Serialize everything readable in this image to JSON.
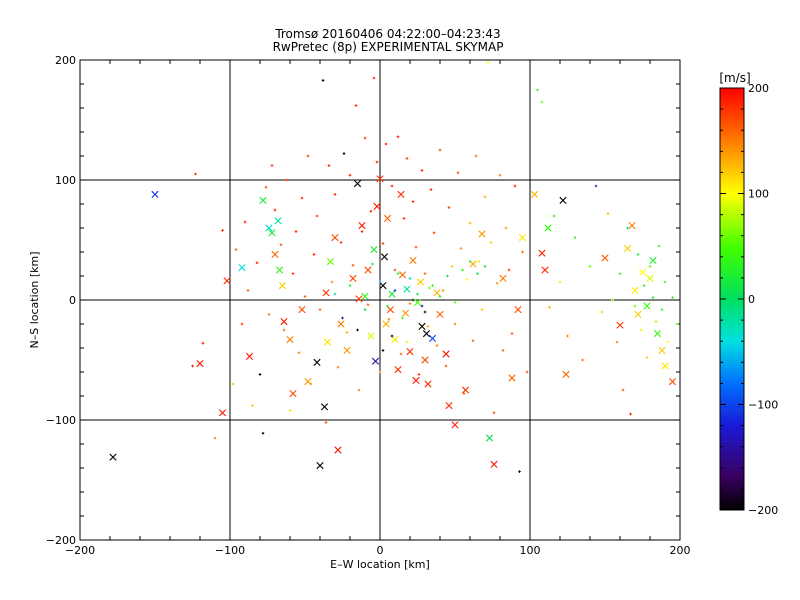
{
  "chart_data": {
    "type": "scatter",
    "title": "Tromsø 20160406 04:22:00–04:23:43",
    "subtitle": "RwPretec (8p) EXPERIMENTAL SKYMAP",
    "xlabel": "E–W location [km]",
    "ylabel": "N–S location [km]",
    "xlim": [
      -200,
      200
    ],
    "ylim": [
      -200,
      200
    ],
    "xticks": [
      -200,
      -100,
      0,
      100,
      200
    ],
    "yticks": [
      -200,
      -100,
      0,
      100,
      200
    ],
    "grid": true,
    "colorbar": {
      "label": "[m/s]",
      "range": [
        -200,
        200
      ],
      "ticks": [
        200,
        100,
        0,
        -100,
        -200
      ],
      "colormap": "rainbow (black → purple → blue → cyan → green → yellow → orange → red)"
    },
    "marker_sets": [
      {
        "marker": "x",
        "points": [
          [
            -178,
            -131,
            -200
          ],
          [
            -150,
            88,
            -110
          ],
          [
            -105,
            -94,
            190
          ],
          [
            -102,
            16,
            185
          ],
          [
            -92,
            27,
            -40
          ],
          [
            -87,
            -47,
            190
          ],
          [
            -78,
            83,
            20
          ],
          [
            -74,
            60,
            -30
          ],
          [
            -72,
            56,
            10
          ],
          [
            -70,
            38,
            160
          ],
          [
            -68,
            66,
            -20
          ],
          [
            -67,
            25,
            40
          ],
          [
            -65,
            12,
            120
          ],
          [
            -64,
            -18,
            190
          ],
          [
            -60,
            -33,
            150
          ],
          [
            -52,
            -8,
            170
          ],
          [
            -42,
            -52,
            -200
          ],
          [
            -40,
            -138,
            -200
          ],
          [
            -37,
            -89,
            -200
          ],
          [
            -36,
            6,
            180
          ],
          [
            -35,
            -35,
            110
          ],
          [
            -33,
            32,
            60
          ],
          [
            -30,
            52,
            170
          ],
          [
            -28,
            -125,
            190
          ],
          [
            -26,
            -20,
            150
          ],
          [
            -22,
            -42,
            140
          ],
          [
            -18,
            18,
            170
          ],
          [
            -15,
            97,
            -200
          ],
          [
            -14,
            1,
            180
          ],
          [
            -12,
            62,
            190
          ],
          [
            -10,
            3,
            40
          ],
          [
            -8,
            25,
            170
          ],
          [
            -6,
            -30,
            90
          ],
          [
            -4,
            42,
            20
          ],
          [
            -3,
            -51,
            -150
          ],
          [
            -2,
            78,
            190
          ],
          [
            0,
            101,
            180
          ],
          [
            2,
            12,
            -200
          ],
          [
            3,
            36,
            -200
          ],
          [
            4,
            -20,
            130
          ],
          [
            5,
            68,
            160
          ],
          [
            7,
            -8,
            170
          ],
          [
            8,
            5,
            20
          ],
          [
            10,
            -33,
            110
          ],
          [
            12,
            -58,
            180
          ],
          [
            14,
            88,
            180
          ],
          [
            15,
            21,
            160
          ],
          [
            17,
            -11,
            140
          ],
          [
            18,
            9,
            -20
          ],
          [
            20,
            -43,
            180
          ],
          [
            22,
            33,
            150
          ],
          [
            24,
            -67,
            190
          ],
          [
            25,
            -2,
            50
          ],
          [
            27,
            15,
            120
          ],
          [
            28,
            -22,
            -200
          ],
          [
            30,
            -50,
            170
          ],
          [
            31,
            -28,
            -200
          ],
          [
            32,
            -70,
            180
          ],
          [
            35,
            -32,
            -100
          ],
          [
            38,
            6,
            130
          ],
          [
            40,
            -12,
            160
          ],
          [
            44,
            -45,
            190
          ],
          [
            50,
            -104,
            190
          ],
          [
            57,
            -75,
            180
          ],
          [
            62,
            30,
            130
          ],
          [
            68,
            55,
            140
          ],
          [
            73,
            -115,
            10
          ],
          [
            76,
            -137,
            190
          ],
          [
            82,
            18,
            150
          ],
          [
            88,
            -65,
            160
          ],
          [
            95,
            52,
            110
          ],
          [
            103,
            88,
            130
          ],
          [
            108,
            39,
            190
          ],
          [
            110,
            25,
            180
          ],
          [
            112,
            60,
            40
          ],
          [
            122,
            83,
            -200
          ],
          [
            150,
            35,
            160
          ],
          [
            160,
            -21,
            180
          ],
          [
            165,
            43,
            120
          ],
          [
            168,
            62,
            150
          ],
          [
            170,
            8,
            110
          ],
          [
            172,
            -12,
            120
          ],
          [
            175,
            23,
            100
          ],
          [
            178,
            -5,
            40
          ],
          [
            180,
            18,
            90
          ],
          [
            182,
            33,
            30
          ],
          [
            185,
            -28,
            40
          ],
          [
            188,
            -42,
            120
          ],
          [
            190,
            -55,
            110
          ],
          [
            195,
            -68,
            170
          ],
          [
            -120,
            -53,
            190
          ],
          [
            -58,
            -78,
            170
          ],
          [
            -48,
            -68,
            140
          ],
          [
            46,
            -88,
            180
          ],
          [
            92,
            -8,
            170
          ],
          [
            124,
            -62,
            160
          ]
        ]
      },
      {
        "marker": "+",
        "points": [
          [
            -125,
            -55,
            190
          ],
          [
            -123,
            105,
            180
          ],
          [
            -118,
            -36,
            190
          ],
          [
            -110,
            -115,
            150
          ],
          [
            -105,
            58,
            190
          ],
          [
            -98,
            -70,
            130
          ],
          [
            -96,
            42,
            160
          ],
          [
            -92,
            -20,
            180
          ],
          [
            -90,
            65,
            190
          ],
          [
            -88,
            8,
            170
          ],
          [
            -85,
            -88,
            120
          ],
          [
            -82,
            31,
            190
          ],
          [
            -80,
            -62,
            -200
          ],
          [
            -78,
            -111,
            -200
          ],
          [
            -76,
            94,
            170
          ],
          [
            -74,
            -12,
            150
          ],
          [
            -72,
            112,
            180
          ],
          [
            -70,
            75,
            190
          ],
          [
            -66,
            46,
            170
          ],
          [
            -64,
            -25,
            160
          ],
          [
            -62,
            100,
            190
          ],
          [
            -60,
            -92,
            110
          ],
          [
            -58,
            22,
            180
          ],
          [
            -56,
            57,
            190
          ],
          [
            -54,
            -44,
            150
          ],
          [
            -52,
            85,
            190
          ],
          [
            -50,
            3,
            170
          ],
          [
            -48,
            120,
            180
          ],
          [
            -46,
            -70,
            140
          ],
          [
            -44,
            38,
            190
          ],
          [
            -42,
            70,
            180
          ],
          [
            -40,
            -8,
            160
          ],
          [
            -38,
            183,
            -200
          ],
          [
            -36,
            -102,
            170
          ],
          [
            -34,
            112,
            190
          ],
          [
            -32,
            15,
            150
          ],
          [
            -30,
            88,
            190
          ],
          [
            -28,
            -56,
            150
          ],
          [
            -26,
            48,
            180
          ],
          [
            -24,
            122,
            -200
          ],
          [
            -22,
            -27,
            130
          ],
          [
            -20,
            104,
            190
          ],
          [
            -18,
            29,
            170
          ],
          [
            -16,
            162,
            190
          ],
          [
            -14,
            -75,
            150
          ],
          [
            -12,
            57,
            190
          ],
          [
            -10,
            135,
            180
          ],
          [
            -8,
            -4,
            160
          ],
          [
            -6,
            74,
            190
          ],
          [
            -4,
            185,
            190
          ],
          [
            -2,
            115,
            190
          ],
          [
            0,
            -60,
            140
          ],
          [
            2,
            47,
            180
          ],
          [
            4,
            130,
            190
          ],
          [
            6,
            -16,
            150
          ],
          [
            8,
            95,
            190
          ],
          [
            10,
            25,
            170
          ],
          [
            12,
            136,
            190
          ],
          [
            14,
            -45,
            160
          ],
          [
            16,
            68,
            190
          ],
          [
            18,
            118,
            180
          ],
          [
            20,
            -3,
            150
          ],
          [
            22,
            82,
            190
          ],
          [
            24,
            44,
            170
          ],
          [
            26,
            -62,
            180
          ],
          [
            28,
            108,
            190
          ],
          [
            30,
            22,
            160
          ],
          [
            32,
            -22,
            130
          ],
          [
            34,
            92,
            190
          ],
          [
            36,
            56,
            180
          ],
          [
            38,
            -38,
            150
          ],
          [
            40,
            125,
            170
          ],
          [
            42,
            8,
            140
          ],
          [
            44,
            -55,
            170
          ],
          [
            46,
            77,
            180
          ],
          [
            48,
            28,
            120
          ],
          [
            50,
            -20,
            150
          ],
          [
            52,
            106,
            170
          ],
          [
            54,
            43,
            140
          ],
          [
            56,
            -78,
            160
          ],
          [
            58,
            17,
            100
          ],
          [
            60,
            64,
            130
          ],
          [
            62,
            -34,
            160
          ],
          [
            64,
            120,
            160
          ],
          [
            66,
            32,
            110
          ],
          [
            68,
            -8,
            120
          ],
          [
            70,
            86,
            130
          ],
          [
            72,
            198,
            100
          ],
          [
            74,
            48,
            120
          ],
          [
            76,
            -94,
            170
          ],
          [
            78,
            14,
            140
          ],
          [
            80,
            104,
            150
          ],
          [
            82,
            -42,
            160
          ],
          [
            84,
            60,
            140
          ],
          [
            86,
            25,
            180
          ],
          [
            88,
            -28,
            170
          ],
          [
            90,
            95,
            190
          ],
          [
            93,
            -143,
            -200
          ],
          [
            95,
            40,
            160
          ],
          [
            98,
            -60,
            170
          ],
          [
            105,
            175,
            40
          ],
          [
            108,
            165,
            60
          ],
          [
            113,
            -6,
            130
          ],
          [
            116,
            70,
            40
          ],
          [
            120,
            15,
            110
          ],
          [
            125,
            -30,
            150
          ],
          [
            130,
            52,
            40
          ],
          [
            135,
            -50,
            160
          ],
          [
            140,
            28,
            60
          ],
          [
            144,
            95,
            -110
          ],
          [
            148,
            -10,
            120
          ],
          [
            152,
            72,
            130
          ],
          [
            155,
            0,
            70
          ],
          [
            158,
            -35,
            150
          ],
          [
            160,
            22,
            40
          ],
          [
            162,
            -75,
            170
          ],
          [
            165,
            60,
            -20
          ],
          [
            167,
            -95,
            190
          ],
          [
            170,
            -5,
            60
          ],
          [
            172,
            38,
            20
          ],
          [
            174,
            -25,
            90
          ],
          [
            176,
            12,
            30
          ],
          [
            178,
            -48,
            120
          ],
          [
            180,
            28,
            60
          ],
          [
            182,
            2,
            20
          ],
          [
            184,
            -18,
            70
          ],
          [
            186,
            45,
            40
          ],
          [
            188,
            -8,
            30
          ],
          [
            190,
            15,
            50
          ],
          [
            192,
            -35,
            100
          ],
          [
            195,
            2,
            30
          ],
          [
            198,
            -20,
            60
          ],
          [
            -30,
            5,
            -20
          ],
          [
            -20,
            12,
            20
          ],
          [
            -10,
            -8,
            0
          ],
          [
            0,
            15,
            -50
          ],
          [
            5,
            -5,
            30
          ],
          [
            10,
            8,
            -100
          ],
          [
            15,
            -15,
            50
          ],
          [
            20,
            18,
            -20
          ],
          [
            25,
            5,
            10
          ],
          [
            30,
            -10,
            -200
          ],
          [
            35,
            12,
            40
          ],
          [
            40,
            3,
            20
          ],
          [
            45,
            20,
            10
          ],
          [
            50,
            -2,
            60
          ],
          [
            55,
            25,
            30
          ],
          [
            60,
            32,
            40
          ],
          [
            65,
            22,
            10
          ],
          [
            70,
            28,
            20
          ],
          [
            -15,
            -25,
            -200
          ],
          [
            -5,
            30,
            20
          ],
          [
            8,
            -30,
            -200
          ],
          [
            18,
            -35,
            90
          ],
          [
            28,
            -5,
            -150
          ],
          [
            33,
            10,
            60
          ],
          [
            12,
            22,
            30
          ],
          [
            -25,
            -15,
            -150
          ],
          [
            2,
            -42,
            -200
          ],
          [
            22,
            0,
            -200
          ]
        ]
      }
    ]
  }
}
